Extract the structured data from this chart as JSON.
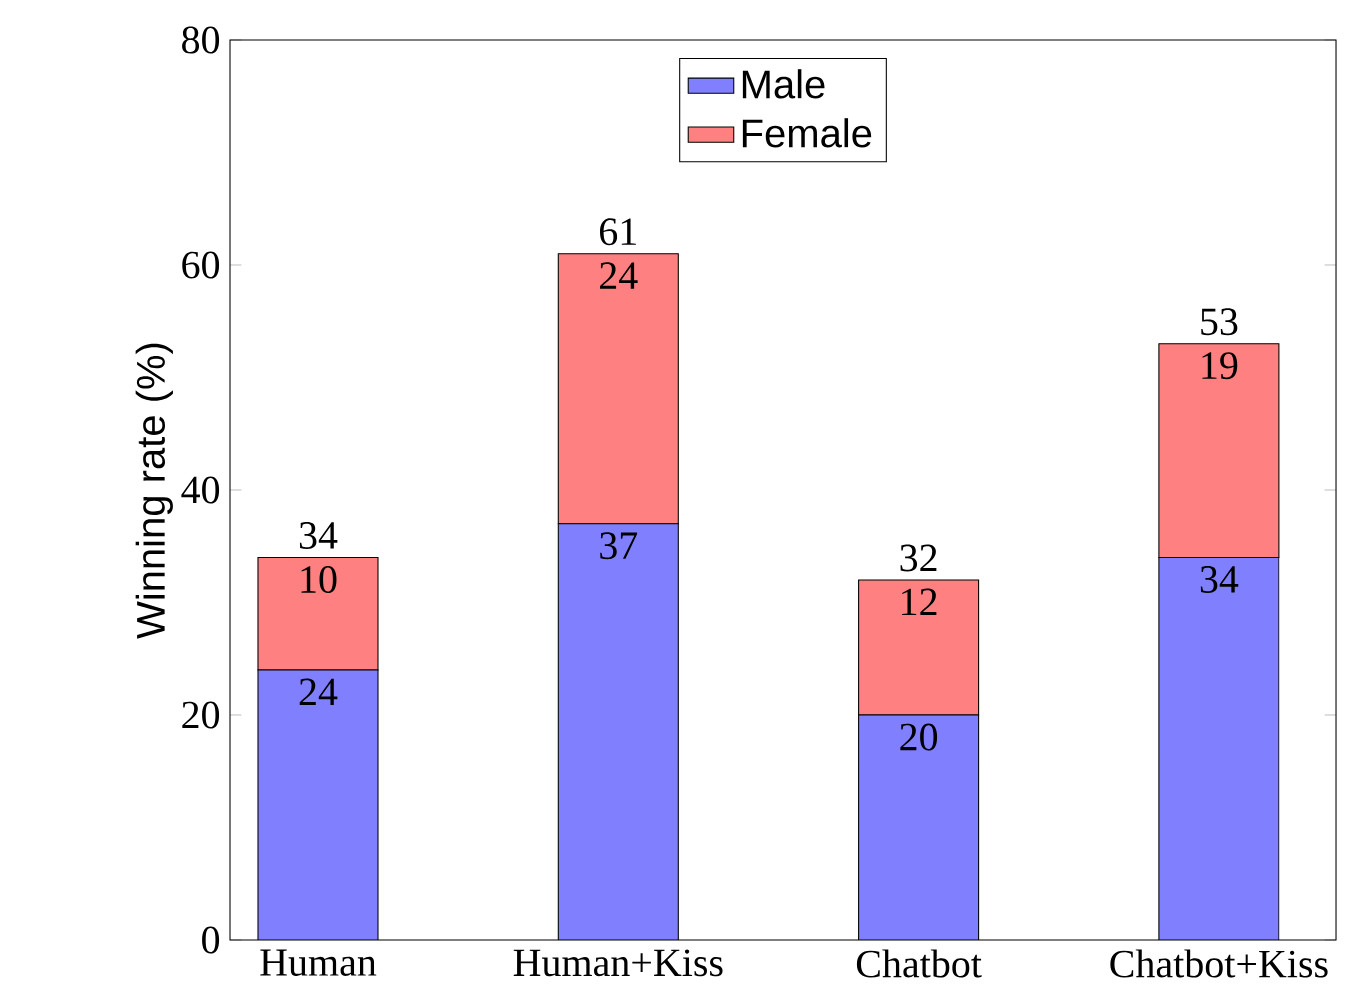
{
  "chart_data": {
    "type": "bar",
    "stacked": true,
    "ylabel": "Winning rate (%)",
    "categories": [
      "Human",
      "Human+Kiss",
      "Chatbot",
      "Chatbot+Kiss"
    ],
    "series": [
      {
        "name": "Male",
        "color": "#8080ff",
        "values": [
          24,
          37,
          20,
          34
        ],
        "value_labels": [
          "24",
          "37",
          "20",
          "34"
        ]
      },
      {
        "name": "Female",
        "color": "#ff8080",
        "values": [
          10,
          24,
          12,
          19
        ],
        "value_labels": [
          "10",
          "24",
          "12",
          "19"
        ]
      }
    ],
    "totals": [
      "34",
      "61",
      "32",
      "53"
    ],
    "ylim": [
      0,
      80
    ],
    "yticks": [
      0,
      20,
      40,
      60,
      80
    ],
    "legend": "top",
    "grid": false
  }
}
